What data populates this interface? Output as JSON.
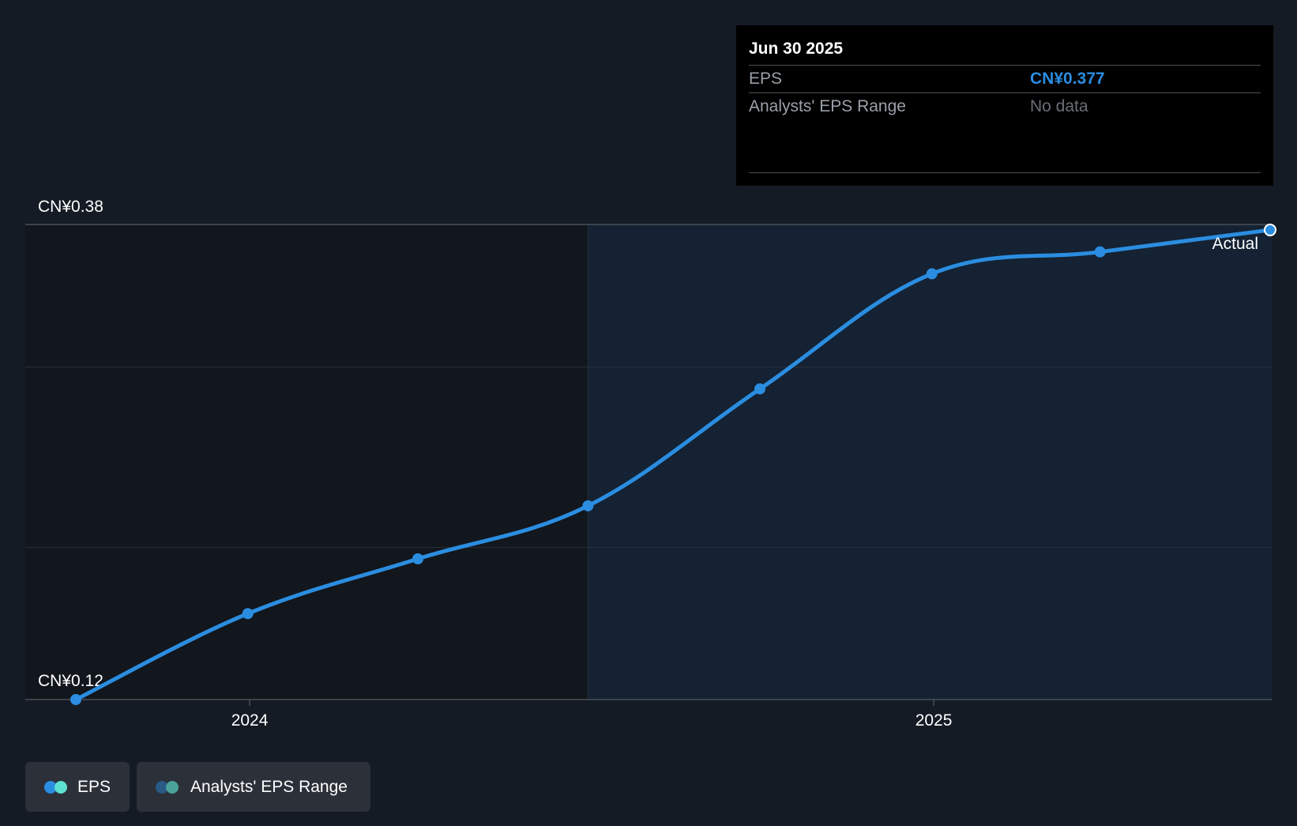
{
  "chart_data": {
    "type": "line",
    "x": [
      "2023-09-30",
      "2023-12-31",
      "2024-03-31",
      "2024-06-30",
      "2024-09-30",
      "2024-12-31",
      "2025-03-31",
      "2025-06-30"
    ],
    "series": [
      {
        "name": "EPS",
        "values": [
          0.12,
          0.167,
          0.197,
          0.226,
          0.29,
          0.353,
          0.365,
          0.377
        ]
      }
    ],
    "ylim": [
      0.12,
      0.38
    ],
    "y_labels": {
      "top": "CN¥0.38",
      "bottom": "CN¥0.12"
    },
    "x_ticks": [
      {
        "date": "2024-01-01",
        "label": "2024"
      },
      {
        "date": "2025-01-01",
        "label": "2025"
      }
    ],
    "forecast_boundary": "2024-06-30",
    "end_label": "Actual",
    "colors": {
      "line": "#2b8de0",
      "background": "#151b24",
      "past_shade": "#12161d",
      "future_shade": "#142233",
      "grid": "#2a313b"
    }
  },
  "tooltip": {
    "date": "Jun 30 2025",
    "rows": [
      {
        "label": "EPS",
        "value": "CN¥0.377"
      },
      {
        "label": "Analysts' EPS Range",
        "value": "No data"
      }
    ]
  },
  "legend": {
    "items": [
      {
        "label": "EPS",
        "colors": [
          "#2b8de0",
          "#5de0d0"
        ]
      },
      {
        "label": "Analysts' EPS Range",
        "colors": [
          "#2a5a86",
          "#4aa39a"
        ]
      }
    ]
  }
}
